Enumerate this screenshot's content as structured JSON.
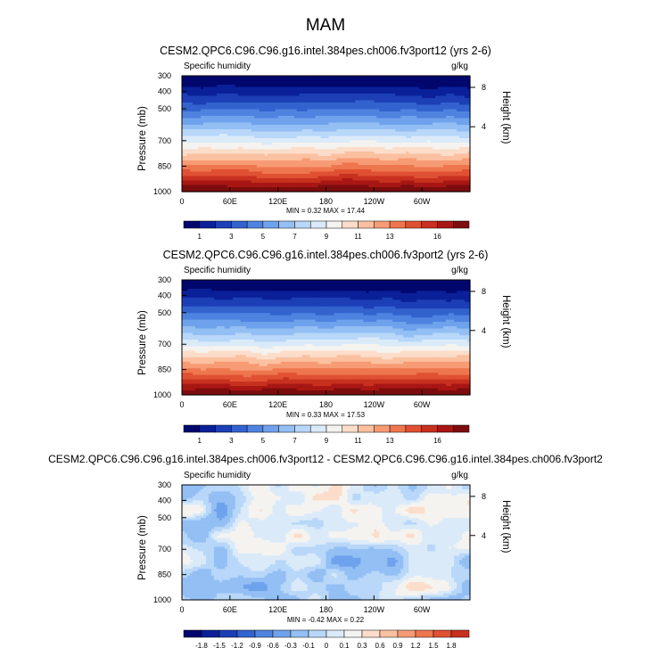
{
  "page": {
    "suptitle": "MAM"
  },
  "chart_data": [
    {
      "type": "heatmap",
      "title": "CESM2.QPC6.C96.C96.g16.intel.384pes.ch006.fv3port12 (yrs 2-6)",
      "variable": "Specific humidity",
      "units": "g/kg",
      "ylabel": "Pressure (mb)",
      "ylabel_right": "Height (km)",
      "xticks": [
        "0",
        "60E",
        "120E",
        "180",
        "120W",
        "60W"
      ],
      "yticks": [
        "300",
        "400",
        "500",
        "700",
        "850",
        "1000"
      ],
      "yticks_right": [
        "8",
        "4"
      ],
      "stats_text": "MIN =   0.32  MAX =  17.44",
      "min": 0.32,
      "max": 17.44,
      "colorbar_labels": [
        "1",
        "3",
        "5",
        "7",
        "9",
        "11",
        "13",
        "16"
      ],
      "colors": [
        "#00076d",
        "#0a2098",
        "#1c3fb6",
        "#3262ce",
        "#4f83e0",
        "#6fa2ec",
        "#93bff4",
        "#b8d7f9",
        "#daeaf9",
        "#f5f3f0",
        "#fbddca",
        "#fbc0a0",
        "#f79b74",
        "#ee764f",
        "#e05032",
        "#c8301f",
        "#a81714",
        "#7c0c0e"
      ],
      "field": "zonally uniform, increasing toward the surface"
    },
    {
      "type": "heatmap",
      "title": "CESM2.QPC6.C96.C96.g16.intel.384pes.ch006.fv3port2 (yrs 2-6)",
      "variable": "Specific humidity",
      "units": "g/kg",
      "ylabel": "Pressure (mb)",
      "ylabel_right": "Height (km)",
      "xticks": [
        "0",
        "60E",
        "120E",
        "180",
        "120W",
        "60W"
      ],
      "yticks": [
        "300",
        "400",
        "500",
        "700",
        "850",
        "1000"
      ],
      "yticks_right": [
        "8",
        "4"
      ],
      "stats_text": "MIN =   0.33  MAX =  17.53",
      "min": 0.33,
      "max": 17.53,
      "colorbar_labels": [
        "1",
        "3",
        "5",
        "7",
        "9",
        "11",
        "13",
        "16"
      ],
      "colors": [
        "#00076d",
        "#0a2098",
        "#1c3fb6",
        "#3262ce",
        "#4f83e0",
        "#6fa2ec",
        "#93bff4",
        "#b8d7f9",
        "#daeaf9",
        "#f5f3f0",
        "#fbddca",
        "#fbc0a0",
        "#f79b74",
        "#ee764f",
        "#e05032",
        "#c8301f",
        "#a81714",
        "#7c0c0e"
      ],
      "field": "zonally uniform, increasing toward the surface"
    },
    {
      "type": "heatmap",
      "title": "CESM2.QPC6.C96.C96.g16.intel.384pes.ch006.fv3port12 - CESM2.QPC6.C96.C96.g16.intel.384pes.ch006.fv3port2",
      "variable": "Specific humidity",
      "units": "g/kg",
      "ylabel": "Pressure (mb)",
      "ylabel_right": "Height (km)",
      "xticks": [
        "0",
        "60E",
        "120E",
        "180",
        "120W",
        "60W"
      ],
      "yticks": [
        "300",
        "400",
        "500",
        "700",
        "850",
        "1000"
      ],
      "yticks_right": [
        "8",
        "4"
      ],
      "stats_text": "MIN =  -0.42  MAX =   0.22",
      "min": -0.42,
      "max": 0.22,
      "colorbar_labels": [
        "-1.8",
        "-1.5",
        "-1.2",
        "-0.9",
        "-0.6",
        "-0.3",
        "-0.1",
        "0",
        "0.1",
        "0.3",
        "0.6",
        "0.9",
        "1.2",
        "1.5",
        "1.8"
      ],
      "colors": [
        "#00076d",
        "#0a2098",
        "#1c3fb6",
        "#3262ce",
        "#4f83e0",
        "#6fa2ec",
        "#93bff4",
        "#b8d7f9",
        "#daeaf9",
        "#f5f3f0",
        "#fbddca",
        "#fbc0a0",
        "#f79b74",
        "#ee764f",
        "#e05032",
        "#c8301f"
      ],
      "field": "weak differences, mostly slightly negative (light blue) with patches of small positive (light orange)"
    }
  ]
}
